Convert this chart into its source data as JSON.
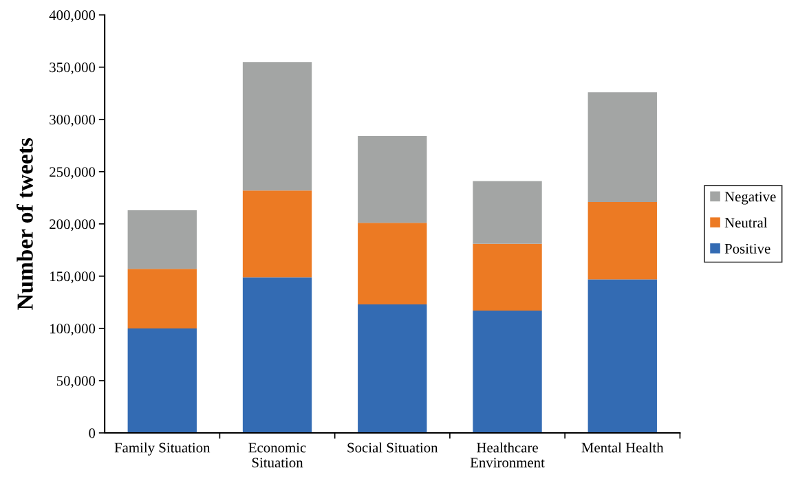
{
  "chart_data": {
    "type": "bar",
    "stacked": true,
    "ylabel": "Number of tweets",
    "categories": [
      "Family Situation",
      "Economic\nSituation",
      "Social Situation",
      "Healthcare\nEnvironment",
      "Mental Health"
    ],
    "series": [
      {
        "name": "Positive",
        "color": "#336bb3",
        "values": [
          100000,
          149000,
          123000,
          117000,
          147000
        ]
      },
      {
        "name": "Neutral",
        "color": "#ec7a23",
        "values": [
          57000,
          83000,
          78000,
          64000,
          74000
        ]
      },
      {
        "name": "Negative",
        "color": "#a3a5a4",
        "values": [
          56000,
          123000,
          83000,
          60000,
          105000
        ]
      }
    ],
    "ylim": [
      0,
      400000
    ],
    "yticks": [
      {
        "value": 0,
        "label": "0"
      },
      {
        "value": 50000,
        "label": "50,000"
      },
      {
        "value": 100000,
        "label": "100,000"
      },
      {
        "value": 150000,
        "label": "150,000"
      },
      {
        "value": 200000,
        "label": "200,000"
      },
      {
        "value": 250000,
        "label": "250,000"
      },
      {
        "value": 300000,
        "label": "300,000"
      },
      {
        "value": 350000,
        "label": "350,000"
      },
      {
        "value": 400000,
        "label": "400,000"
      }
    ],
    "grid": false,
    "legend": "right"
  }
}
